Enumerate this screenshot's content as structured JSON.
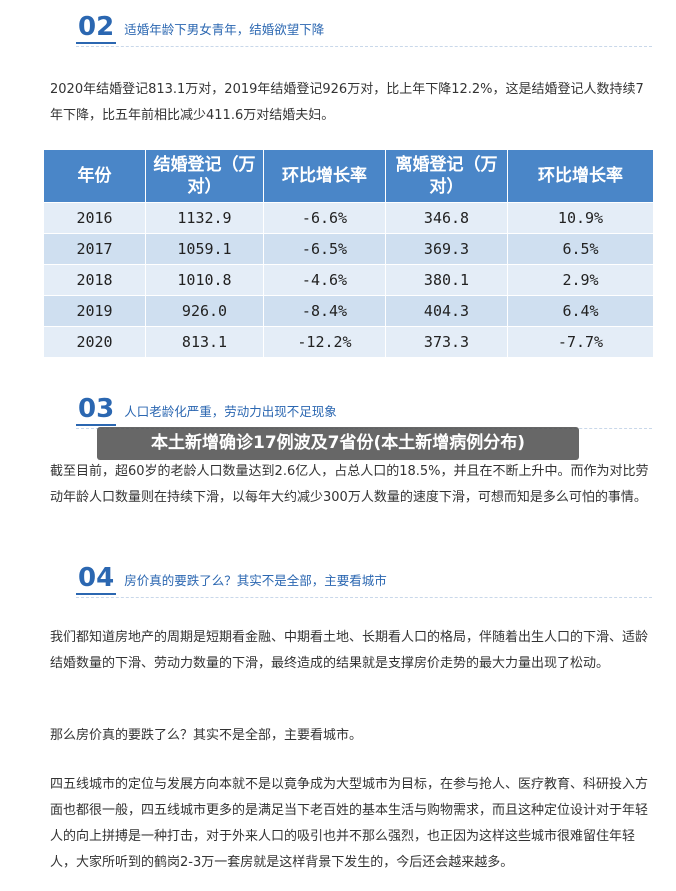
{
  "sections": [
    {
      "number": "02",
      "title": "适婚年龄下男女青年，结婚欲望下降"
    },
    {
      "number": "03",
      "title": "人口老龄化严重，劳动力出现不足现象"
    },
    {
      "number": "04",
      "title": "房价真的要跌了么？其实不是全部，主要看城市"
    }
  ],
  "para_marriage": "2020年结婚登记813.1万对，2019年结婚登记926万对，比上年下降12.2%，这是结婚登记人数持续7年下降，比五年前相比减少411.6万对结婚夫妇。",
  "table": {
    "headers": [
      "年份",
      "结婚登记（万对）",
      "环比增长率",
      "离婚登记（万对）",
      "环比增长率"
    ],
    "rows": [
      [
        "2016",
        "1132.9",
        "-6.6%",
        "346.8",
        "10.9%"
      ],
      [
        "2017",
        "1059.1",
        "-6.5%",
        "369.3",
        "6.5%"
      ],
      [
        "2018",
        "1010.8",
        "-4.6%",
        "380.1",
        "2.9%"
      ],
      [
        "2019",
        "926.0",
        "-8.4%",
        "404.3",
        "6.4%"
      ],
      [
        "2020",
        "813.1",
        "-12.2%",
        "373.3",
        "-7.7%"
      ]
    ]
  },
  "overlay_title": "本土新增确诊17例波及7省份(本土新增病例分布)",
  "para_aging": "截至目前，超60岁的老龄人口数量达到2.6亿人，占总人口的18.5%，并且在不断上升中。而作为对比劳动年龄人口数量则在持续下滑，以每年大约减少300万人数量的速度下滑，可想而知是多么可怕的事情。",
  "para_cycle": "我们都知道房地产的周期是短期看金融、中期看土地、长期看人口的格局，伴随着出生人口的下滑、适龄结婚数量的下滑、劳动力数量的下滑，最终造成的结果就是支撑房价走势的最大力量出现了松动。",
  "para_question": "那么房价真的要跌了么？其实不是全部，主要看城市。",
  "para_cities": "四五线城市的定位与发展方向本就不是以竟争成为大型城市为目标，在参与抢人、医疗教育、科研投入方面也都很一般，四五线城市更多的是满足当下老百姓的基本生活与购物需求，而且这种定位设计对于年轻人的向上拼搏是一种打击，对于外来人口的吸引也并不那么强烈，也正因为这样这些城市很难留住年轻人，大家所听到的鹤岗2-3万一套房就是这样背景下发生的，今后还会越来越多。",
  "colors": {
    "accent": "#2b67b1",
    "table_header": "#4a86c8",
    "row_light": "#e4edf7",
    "row_dark": "#cfdff0"
  }
}
